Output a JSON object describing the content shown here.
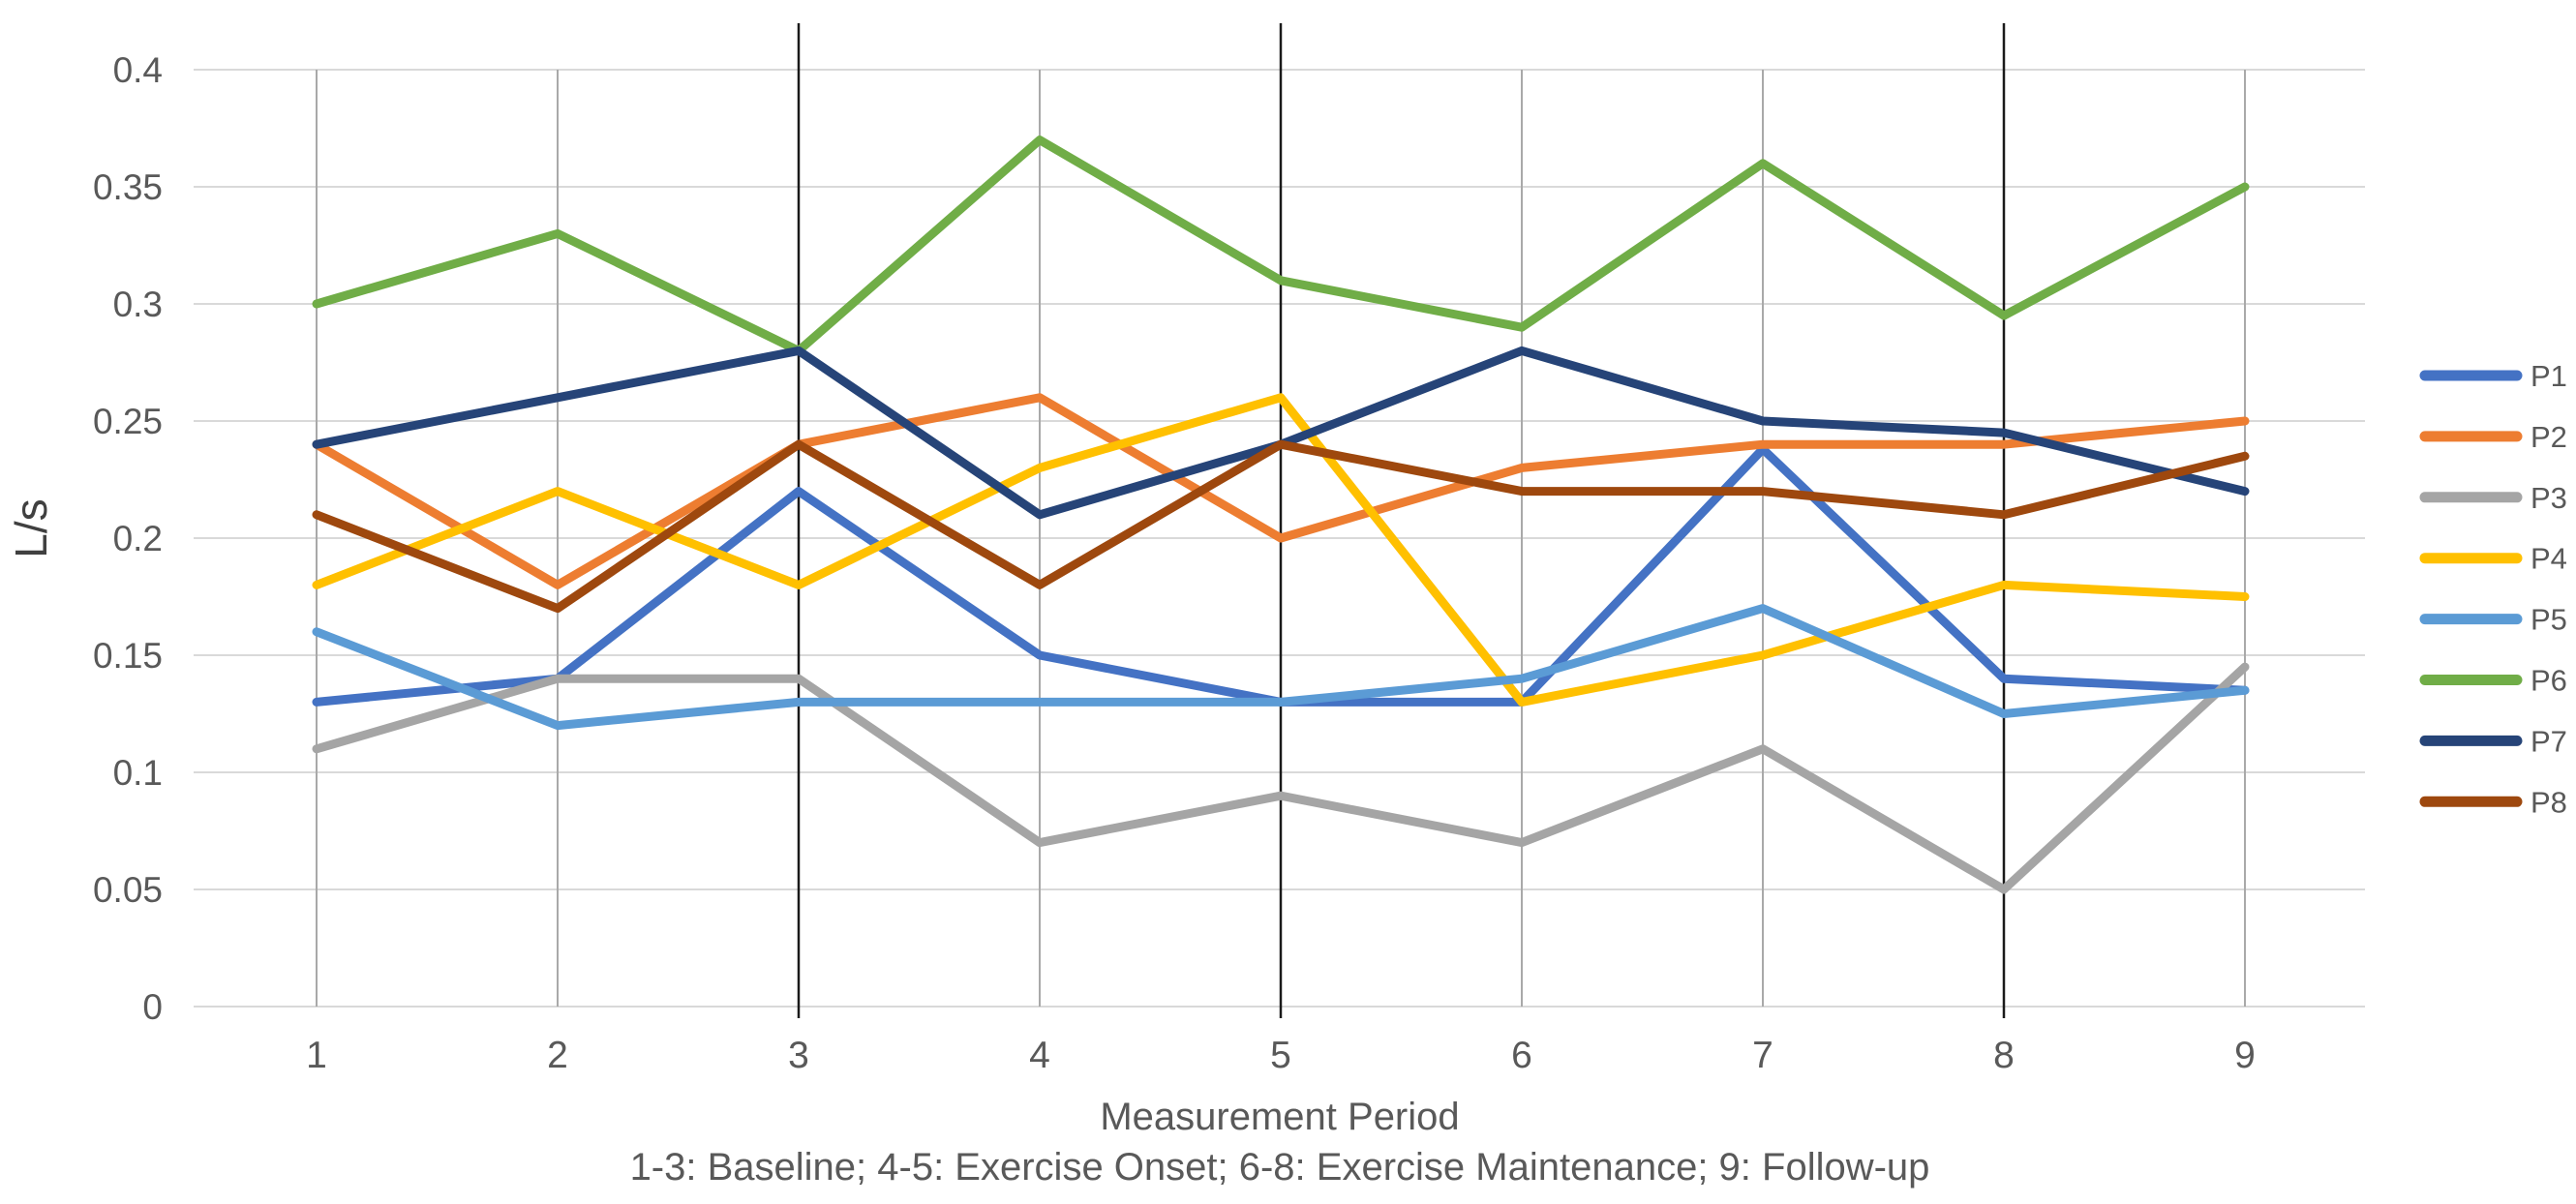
{
  "chart_data": {
    "type": "line",
    "title": "",
    "xlabel": "Measurement Period",
    "ylabel": "L/s",
    "x_note": "1-3: Baseline; 4-5: Exercise Onset; 6-8: Exercise Maintenance; 9: Follow-up",
    "categories": [
      "1",
      "2",
      "3",
      "4",
      "5",
      "6",
      "7",
      "8",
      "9"
    ],
    "ylim": [
      0,
      0.4
    ],
    "ytick_step": 0.05,
    "ytick_labels": [
      "0",
      "0.05",
      "0.1",
      "0.15",
      "0.2",
      "0.25",
      "0.3",
      "0.35",
      "0.4"
    ],
    "grid": {
      "horizontal": true,
      "vertical": true
    },
    "phase_boundaries_at_categories": [
      "3",
      "5",
      "8"
    ],
    "legend_position": "right",
    "text_color": "#595959",
    "series": [
      {
        "name": "P1",
        "color": "#4472C4",
        "values": [
          0.13,
          0.14,
          0.22,
          0.15,
          0.13,
          0.13,
          0.238,
          0.14,
          0.135
        ]
      },
      {
        "name": "P2",
        "color": "#ED7D31",
        "values": [
          0.24,
          0.18,
          0.24,
          0.26,
          0.2,
          0.23,
          0.24,
          0.24,
          0.25
        ]
      },
      {
        "name": "P3",
        "color": "#A5A5A5",
        "values": [
          0.11,
          0.14,
          0.14,
          0.07,
          0.09,
          0.07,
          0.11,
          0.05,
          0.145
        ]
      },
      {
        "name": "P4",
        "color": "#FFC000",
        "values": [
          0.18,
          0.22,
          0.18,
          0.23,
          0.26,
          0.13,
          0.15,
          0.18,
          0.175
        ]
      },
      {
        "name": "P5",
        "color": "#5B9BD5",
        "values": [
          0.16,
          0.12,
          0.13,
          0.13,
          0.13,
          0.14,
          0.17,
          0.125,
          0.135
        ]
      },
      {
        "name": "P6",
        "color": "#70AD47",
        "values": [
          0.3,
          0.33,
          0.28,
          0.37,
          0.31,
          0.29,
          0.36,
          0.295,
          0.35
        ]
      },
      {
        "name": "P7",
        "color": "#264478",
        "values": [
          0.24,
          0.26,
          0.28,
          0.21,
          0.24,
          0.28,
          0.25,
          0.245,
          0.22
        ]
      },
      {
        "name": "P8",
        "color": "#9E480E",
        "values": [
          0.21,
          0.17,
          0.24,
          0.18,
          0.24,
          0.22,
          0.22,
          0.21,
          0.235
        ]
      }
    ]
  }
}
